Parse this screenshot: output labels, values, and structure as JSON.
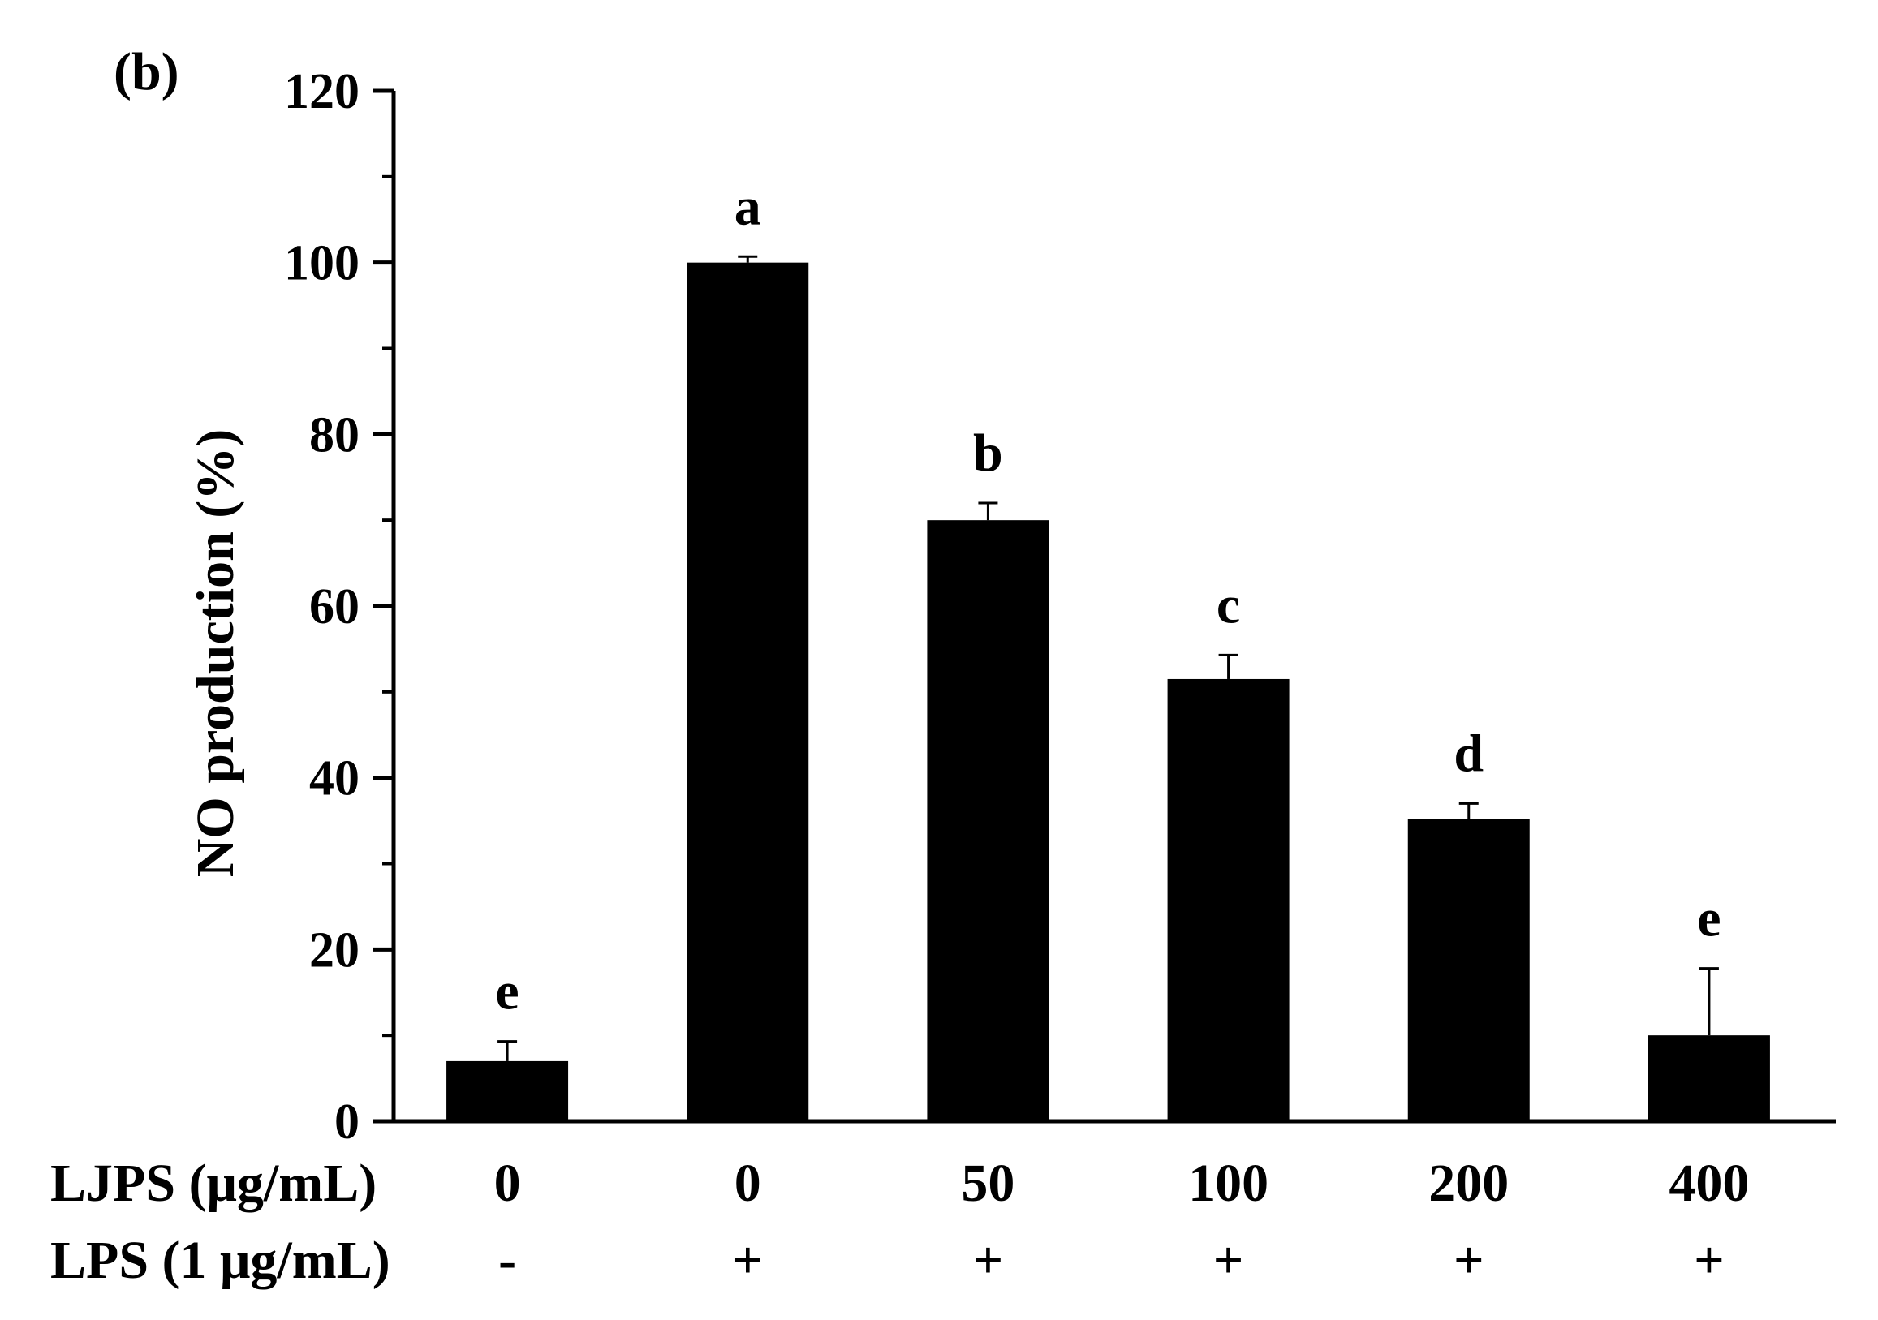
{
  "chart_data": {
    "type": "bar",
    "panel_label": "(b)",
    "ylabel": "NO production (%)",
    "ylim": [
      0,
      120
    ],
    "yticks": [
      0,
      20,
      40,
      60,
      80,
      100,
      120
    ],
    "grid": false,
    "legend": "none",
    "bar_color": "#000000",
    "categories": [
      {
        "ljps": "0",
        "lps": "-"
      },
      {
        "ljps": "0",
        "lps": "+"
      },
      {
        "ljps": "50",
        "lps": "+"
      },
      {
        "ljps": "100",
        "lps": "+"
      },
      {
        "ljps": "200",
        "lps": "+"
      },
      {
        "ljps": "400",
        "lps": "+"
      }
    ],
    "row_titles": [
      "LJPS (μg/mL)",
      "LPS (1 μg/mL)"
    ],
    "values": [
      7.0,
      100.0,
      70.0,
      51.5,
      35.2,
      10.0
    ],
    "errors": [
      2.3,
      0.7,
      2.0,
      2.8,
      1.8,
      7.8
    ],
    "significance": [
      "e",
      "a",
      "b",
      "c",
      "d",
      "e"
    ]
  }
}
